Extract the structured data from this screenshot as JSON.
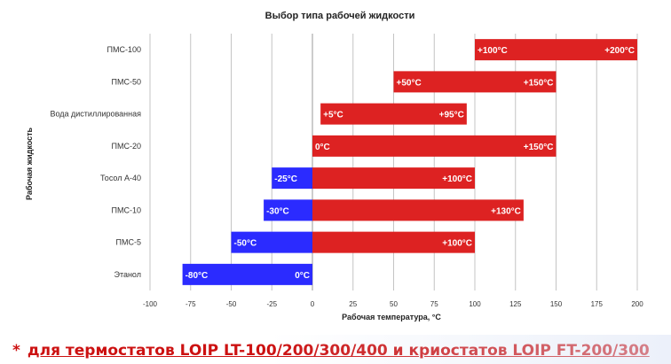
{
  "chart_data": {
    "type": "bar",
    "orientation": "horizontal-range",
    "title": "Выбор типа рабочей жидкости",
    "xlabel": "Рабочая температура, °С",
    "ylabel": "Рабочая жидкость",
    "xlim": [
      -100,
      200
    ],
    "xticks": [
      "-100",
      "-75",
      "-50",
      "-25",
      "0",
      "25",
      "50",
      "75",
      "100",
      "125",
      "150",
      "175",
      "200"
    ],
    "grid": "vertical",
    "categories": [
      "ПМС-100",
      "ПМС-50",
      "Вода дистиллированная",
      "ПМС-20",
      "Тосол А-40",
      "ПМС-10",
      "ПМС-5",
      "Этанол"
    ],
    "series": [
      {
        "color": "#2b2bff",
        "ranges": [
          null,
          null,
          null,
          null,
          {
            "from": -25,
            "to": 0,
            "label": "-25°C"
          },
          {
            "from": -30,
            "to": 0,
            "label": "-30°C"
          },
          {
            "from": -50,
            "to": 0,
            "label": "-50°C"
          },
          {
            "from": -80,
            "to": 0,
            "label": "-80°C",
            "end_label": "0°C"
          }
        ]
      },
      {
        "color": "#dd2222",
        "ranges": [
          {
            "from": 100,
            "to": 200,
            "label": "+100°C",
            "end_label": "+200°C"
          },
          {
            "from": 50,
            "to": 150,
            "label": "+50°C",
            "end_label": "+150°C"
          },
          {
            "from": 5,
            "to": 95,
            "label": "+5°C",
            "end_label": "+95°C"
          },
          {
            "from": 0,
            "to": 150,
            "label": "0°C",
            "end_label": "+150°C"
          },
          {
            "from": 0,
            "to": 100,
            "end_label": "+100°C"
          },
          {
            "from": 0,
            "to": 130,
            "end_label": "+130°C"
          },
          {
            "from": 0,
            "to": 100,
            "end_label": "+100°C"
          },
          null
        ]
      }
    ]
  },
  "footnote": {
    "star": "*",
    "text": "для термостатов LOIP LT-100/200/300/400 и криостатов LOIP FT-200/300"
  }
}
